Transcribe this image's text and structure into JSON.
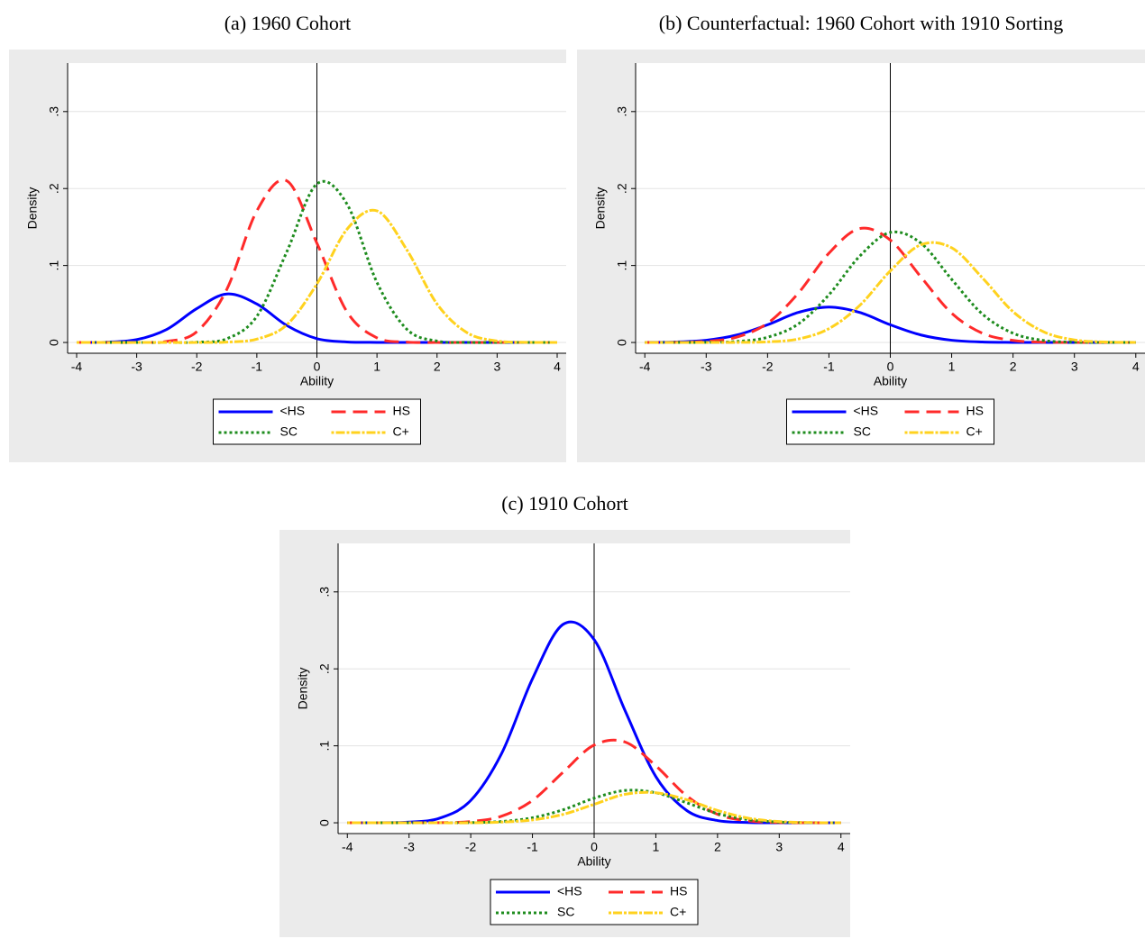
{
  "chart_data": [
    {
      "type": "line",
      "title": "(a) 1960 Cohort",
      "xlabel": "Ability",
      "ylabel": "Density",
      "x": [
        -4,
        -3.5,
        -3,
        -2.5,
        -2,
        -1.5,
        -1,
        -0.5,
        0,
        0.5,
        1,
        1.5,
        2,
        2.5,
        3,
        3.5,
        4
      ],
      "series": [
        {
          "name": "<HS",
          "color": "#0000ff",
          "dash": "solid",
          "values": [
            0,
            0.0004,
            0.0037,
            0.017,
            0.044,
            0.063,
            0.05,
            0.022,
            0.005,
            0.0007,
            0.0001,
            0,
            0,
            0,
            0,
            0,
            0
          ]
        },
        {
          "name": "HS",
          "color": "#ff2a2a",
          "dash": "dash",
          "values": [
            0,
            0,
            0.0001,
            0.0014,
            0.014,
            0.069,
            0.171,
            0.21,
            0.129,
            0.04,
            0.006,
            0.0005,
            0,
            0,
            0,
            0,
            0
          ]
        },
        {
          "name": "SC",
          "color": "#1e8c1e",
          "dash": "dot",
          "values": [
            0,
            0,
            0,
            0,
            0.0004,
            0.0049,
            0.034,
            0.118,
            0.206,
            0.18,
            0.078,
            0.017,
            0.0018,
            0.0001,
            0,
            0,
            0
          ]
        },
        {
          "name": "C+",
          "color": "#ffd21e",
          "dash": "dashdot",
          "values": [
            0,
            0,
            0,
            0,
            0,
            0.0005,
            0.0044,
            0.023,
            0.076,
            0.147,
            0.171,
            0.12,
            0.05,
            0.0127,
            0.0019,
            0.0002,
            0
          ]
        }
      ],
      "xlim": [
        -4.15,
        4.15
      ],
      "ylim": [
        -0.014,
        0.363
      ],
      "xticks": [
        -4,
        -3,
        -2,
        -1,
        0,
        1,
        2,
        3,
        4
      ],
      "yticks": [
        {
          "value": 0,
          "label": "0"
        },
        {
          "value": 0.1,
          "label": ".1"
        },
        {
          "value": 0.2,
          "label": ".2"
        },
        {
          "value": 0.3,
          "label": ".3"
        }
      ],
      "grid": true,
      "xline": 0
    },
    {
      "type": "line",
      "title": "(b) Counterfactual: 1960 Cohort with 1910 Sorting",
      "xlabel": "Ability",
      "ylabel": "Density",
      "x": [
        -4,
        -3.5,
        -3,
        -2.5,
        -2,
        -1.5,
        -1,
        -0.5,
        0,
        0.5,
        1,
        1.5,
        2,
        2.5,
        3,
        3.5,
        4
      ],
      "series": [
        {
          "name": "<HS",
          "color": "#0000ff",
          "dash": "solid",
          "values": [
            0.0001,
            0.0006,
            0.0029,
            0.0097,
            0.023,
            0.039,
            0.046,
            0.039,
            0.023,
            0.0097,
            0.0029,
            0.0006,
            0.0001,
            0,
            0,
            0,
            0
          ]
        },
        {
          "name": "HS",
          "color": "#ff2a2a",
          "dash": "dash",
          "values": [
            0,
            0.0002,
            0.0014,
            0.007,
            0.025,
            0.064,
            0.116,
            0.148,
            0.133,
            0.085,
            0.038,
            0.012,
            0.0027,
            0.0004,
            0.0001,
            0,
            0
          ]
        },
        {
          "name": "SC",
          "color": "#1e8c1e",
          "dash": "dot",
          "values": [
            0,
            0,
            0.0002,
            0.0013,
            0.0068,
            0.024,
            0.062,
            0.112,
            0.143,
            0.129,
            0.082,
            0.037,
            0.012,
            0.0026,
            0.0004,
            0.0001,
            0
          ]
        },
        {
          "name": "C+",
          "color": "#ffd21e",
          "dash": "dashdot",
          "values": [
            0,
            0,
            0,
            0.0001,
            0.0008,
            0.0045,
            0.018,
            0.048,
            0.093,
            0.127,
            0.123,
            0.084,
            0.04,
            0.0138,
            0.0033,
            0.0006,
            0.0001
          ]
        }
      ],
      "xlim": [
        -4.15,
        4.15
      ],
      "ylim": [
        -0.014,
        0.363
      ],
      "xticks": [
        -4,
        -3,
        -2,
        -1,
        0,
        1,
        2,
        3,
        4
      ],
      "yticks": [
        {
          "value": 0,
          "label": "0"
        },
        {
          "value": 0.1,
          "label": ".1"
        },
        {
          "value": 0.2,
          "label": ".2"
        },
        {
          "value": 0.3,
          "label": ".3"
        }
      ],
      "grid": true,
      "xline": 0
    },
    {
      "type": "line",
      "title": "(c) 1910 Cohort",
      "xlabel": "Ability",
      "ylabel": "Density",
      "x": [
        -4,
        -3.5,
        -3,
        -2.5,
        -2,
        -1.5,
        -1,
        -0.5,
        0,
        0.5,
        1,
        1.5,
        2,
        2.5,
        3,
        3.5,
        4
      ],
      "series": [
        {
          "name": "<HS",
          "color": "#0000ff",
          "dash": "solid",
          "values": [
            0,
            0.0001,
            0.0009,
            0.0061,
            0.029,
            0.09,
            0.187,
            0.258,
            0.238,
            0.146,
            0.06,
            0.016,
            0.0029,
            0.0004,
            0.0001,
            0,
            0
          ]
        },
        {
          "name": "HS",
          "color": "#ff2a2a",
          "dash": "dash",
          "values": [
            0,
            0,
            0,
            0.0002,
            0.0017,
            0.0086,
            0.029,
            0.066,
            0.101,
            0.105,
            0.074,
            0.035,
            0.011,
            0.0025,
            0.0004,
            0,
            0
          ]
        },
        {
          "name": "SC",
          "color": "#1e8c1e",
          "dash": "dot",
          "values": [
            0,
            0,
            0,
            0,
            0.0003,
            0.0017,
            0.0065,
            0.017,
            0.032,
            0.042,
            0.039,
            0.026,
            0.012,
            0.004,
            0.0009,
            0.0002,
            0
          ]
        },
        {
          "name": "C+",
          "color": "#ffd21e",
          "dash": "dashdot",
          "values": [
            0,
            0,
            0,
            0,
            0,
            0.0009,
            0.0037,
            0.011,
            0.024,
            0.037,
            0.039,
            0.03,
            0.016,
            0.006,
            0.0016,
            0.0003,
            0
          ]
        }
      ],
      "xlim": [
        -4.15,
        4.15
      ],
      "ylim": [
        -0.014,
        0.363
      ],
      "xticks": [
        -4,
        -3,
        -2,
        -1,
        0,
        1,
        2,
        3,
        4
      ],
      "yticks": [
        {
          "value": 0,
          "label": "0"
        },
        {
          "value": 0.1,
          "label": ".1"
        },
        {
          "value": 0.2,
          "label": ".2"
        },
        {
          "value": 0.3,
          "label": ".3"
        }
      ],
      "grid": true,
      "xline": 0
    }
  ]
}
